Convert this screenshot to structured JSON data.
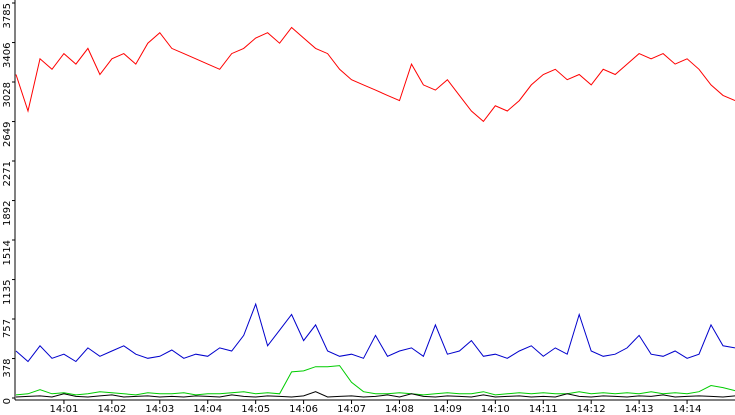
{
  "chart_data": {
    "type": "line",
    "x": [
      0,
      0.25,
      0.5,
      0.75,
      1,
      1.25,
      1.5,
      1.75,
      2,
      2.25,
      2.5,
      2.75,
      3,
      3.25,
      3.5,
      3.75,
      4,
      4.25,
      4.5,
      4.75,
      5,
      5.25,
      5.5,
      5.75,
      6,
      6.25,
      6.5,
      6.75,
      7,
      7.25,
      7.5,
      7.75,
      8,
      8.25,
      8.5,
      8.75,
      9,
      9.25,
      9.5,
      9.75,
      10,
      10.25,
      10.5,
      10.75,
      11,
      11.25,
      11.5,
      11.75,
      12,
      12.25,
      12.5,
      12.75,
      13,
      13.25,
      13.5,
      13.75,
      14,
      14.25,
      14.5,
      14.75,
      15
    ],
    "series": [
      {
        "color": "#ff0000",
        "values": [
          3100,
          2750,
          3250,
          3150,
          3300,
          3200,
          3350,
          3100,
          3250,
          3300,
          3200,
          3400,
          3500,
          3350,
          3300,
          3250,
          3200,
          3150,
          3300,
          3350,
          3450,
          3500,
          3400,
          3550,
          3450,
          3350,
          3300,
          3150,
          3050,
          3000,
          2950,
          2900,
          2850,
          3200,
          3000,
          2950,
          3050,
          2900,
          2750,
          2650,
          2800,
          2750,
          2850,
          3000,
          3100,
          3150,
          3050,
          3100,
          3000,
          3150,
          3100,
          3200,
          3300,
          3250,
          3300,
          3200,
          3250,
          3150,
          3000,
          2900,
          2850
        ]
      },
      {
        "color": "#0000cc",
        "values": [
          450,
          350,
          500,
          380,
          420,
          350,
          480,
          400,
          450,
          500,
          420,
          380,
          400,
          460,
          380,
          420,
          400,
          480,
          450,
          600,
          900,
          500,
          650,
          800,
          550,
          700,
          450,
          400,
          420,
          380,
          600,
          400,
          450,
          480,
          400,
          700,
          420,
          450,
          550,
          400,
          420,
          380,
          450,
          500,
          400,
          480,
          420,
          800,
          450,
          400,
          420,
          480,
          600,
          420,
          400,
          450,
          380,
          420,
          700,
          500,
          480
        ]
      },
      {
        "color": "#00cc00",
        "values": [
          30,
          40,
          80,
          40,
          50,
          30,
          40,
          60,
          50,
          40,
          30,
          50,
          40,
          40,
          50,
          30,
          40,
          40,
          50,
          60,
          40,
          50,
          40,
          250,
          260,
          300,
          300,
          310,
          150,
          60,
          40,
          40,
          50,
          40,
          30,
          40,
          50,
          40,
          40,
          60,
          30,
          40,
          50,
          40,
          50,
          40,
          40,
          60,
          40,
          50,
          40,
          50,
          40,
          60,
          40,
          50,
          40,
          60,
          120,
          100,
          70
        ]
      },
      {
        "color": "#000000",
        "values": [
          10,
          15,
          20,
          10,
          40,
          15,
          10,
          20,
          30,
          10,
          15,
          20,
          10,
          15,
          10,
          20,
          15,
          10,
          30,
          15,
          10,
          20,
          15,
          10,
          20,
          60,
          10,
          15,
          20,
          10,
          15,
          30,
          10,
          40,
          15,
          10,
          20,
          15,
          10,
          30,
          10,
          15,
          20,
          10,
          15,
          10,
          40,
          15,
          10,
          20,
          15,
          10,
          20,
          15,
          30,
          10,
          15,
          20,
          15,
          10,
          20
        ]
      }
    ],
    "xlim": [
      0,
      15
    ],
    "xticks": [
      {
        "value": 1,
        "label": "14:01"
      },
      {
        "value": 2,
        "label": "14:02"
      },
      {
        "value": 3,
        "label": "14:03"
      },
      {
        "value": 4,
        "label": "14:04"
      },
      {
        "value": 5,
        "label": "14:05"
      },
      {
        "value": 6,
        "label": "14:06"
      },
      {
        "value": 7,
        "label": "14:07"
      },
      {
        "value": 8,
        "label": "14:08"
      },
      {
        "value": 9,
        "label": "14:09"
      },
      {
        "value": 10,
        "label": "14:10"
      },
      {
        "value": 11,
        "label": "14:11"
      },
      {
        "value": 12,
        "label": "14:12"
      },
      {
        "value": 13,
        "label": "14:13"
      },
      {
        "value": 14,
        "label": "14:14"
      }
    ],
    "ylim": [
      0,
      3785
    ],
    "yticks": [
      0,
      378,
      757,
      1135,
      1514,
      1892,
      2271,
      2649,
      3028,
      3406,
      3785
    ]
  }
}
